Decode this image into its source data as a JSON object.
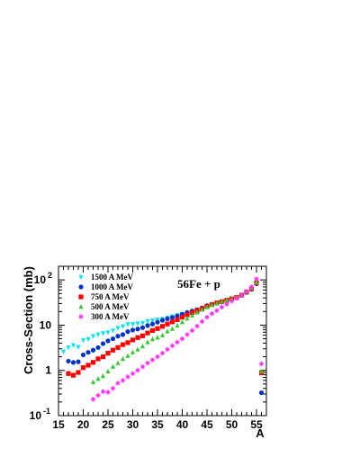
{
  "chart_data": {
    "type": "scatter",
    "title": "",
    "xlabel": "A",
    "ylabel": "Cross-Section (mb)",
    "xlim": [
      15,
      57
    ],
    "ylim": [
      0.1,
      200
    ],
    "ylog": true,
    "x_ticks": [
      15,
      20,
      25,
      30,
      35,
      40,
      45,
      50,
      55
    ],
    "y_ticks": [
      {
        "value": 0.1,
        "label": "10",
        "exp": "-1"
      },
      {
        "value": 1,
        "label": "1",
        "exp": ""
      },
      {
        "value": 10,
        "label": "10",
        "exp": ""
      },
      {
        "value": 100,
        "label": "10",
        "exp": "2"
      }
    ],
    "annotation": "56Fe + p",
    "legend_position": "top-left",
    "series": [
      {
        "name": "1500 A MeV",
        "color": "#00e5ee",
        "marker": "triangle-down",
        "points": [
          [
            16,
            2.6
          ],
          [
            17,
            3.2
          ],
          [
            18,
            3.6
          ],
          [
            19,
            3.3
          ],
          [
            20,
            4.6
          ],
          [
            21,
            4.9
          ],
          [
            22,
            5.7
          ],
          [
            23,
            6.2
          ],
          [
            24,
            6.6
          ],
          [
            25,
            6.9
          ],
          [
            26,
            7.6
          ],
          [
            27,
            8.6
          ],
          [
            28,
            9.4
          ],
          [
            29,
            10.4
          ],
          [
            30,
            10.5
          ],
          [
            31,
            10.9
          ],
          [
            32,
            11.2
          ],
          [
            33,
            12.2
          ],
          [
            34,
            12.6
          ],
          [
            35,
            13.2
          ],
          [
            36,
            13.7
          ],
          [
            37,
            14.6
          ],
          [
            38,
            15.5
          ],
          [
            39,
            16.5
          ],
          [
            40,
            17.5
          ],
          [
            41,
            19
          ],
          [
            42,
            20.5
          ],
          [
            43,
            22
          ],
          [
            44,
            24
          ],
          [
            45,
            26
          ],
          [
            46,
            28
          ],
          [
            47,
            30
          ],
          [
            48,
            32
          ],
          [
            49,
            34.5
          ],
          [
            50,
            37
          ],
          [
            51,
            40
          ],
          [
            52,
            45
          ],
          [
            53,
            52
          ],
          [
            54,
            62
          ],
          [
            55,
            85
          ]
        ]
      },
      {
        "name": "1000 A MeV",
        "color": "#0033cc",
        "marker": "circle",
        "points": [
          [
            17,
            1.6
          ],
          [
            18,
            1.5
          ],
          [
            19,
            1.55
          ],
          [
            20,
            2.2
          ],
          [
            21,
            2.5
          ],
          [
            22,
            2.8
          ],
          [
            23,
            3.2
          ],
          [
            24,
            3.9
          ],
          [
            25,
            4.5
          ],
          [
            26,
            5.0
          ],
          [
            27,
            5.7
          ],
          [
            28,
            6.2
          ],
          [
            29,
            7.2
          ],
          [
            30,
            7.8
          ],
          [
            31,
            8.2
          ],
          [
            32,
            8.8
          ],
          [
            33,
            9.8
          ],
          [
            34,
            10.6
          ],
          [
            35,
            11.6
          ],
          [
            36,
            12.8
          ],
          [
            37,
            13.8
          ],
          [
            38,
            14.8
          ],
          [
            39,
            16
          ],
          [
            40,
            17.5
          ],
          [
            41,
            19
          ],
          [
            42,
            20.5
          ],
          [
            43,
            22
          ],
          [
            44,
            24
          ],
          [
            45,
            27
          ],
          [
            46,
            29
          ],
          [
            47,
            31
          ],
          [
            48,
            33
          ],
          [
            49,
            35
          ],
          [
            50,
            38
          ],
          [
            51,
            41
          ],
          [
            52,
            46
          ],
          [
            53,
            53
          ],
          [
            54,
            62
          ],
          [
            55,
            82
          ],
          [
            56,
            0.32
          ]
        ]
      },
      {
        "name": "750 A MeV",
        "color": "#ff0000",
        "marker": "square",
        "points": [
          [
            17,
            0.85
          ],
          [
            18,
            0.78
          ],
          [
            19,
            0.9
          ],
          [
            20,
            1.15
          ],
          [
            21,
            1.3
          ],
          [
            22,
            1.5
          ],
          [
            23,
            1.8
          ],
          [
            24,
            2.0
          ],
          [
            25,
            2.4
          ],
          [
            26,
            2.8
          ],
          [
            27,
            3.2
          ],
          [
            28,
            3.7
          ],
          [
            29,
            4.1
          ],
          [
            30,
            4.7
          ],
          [
            31,
            5.3
          ],
          [
            32,
            5.8
          ],
          [
            33,
            6.7
          ],
          [
            34,
            7.6
          ],
          [
            35,
            8.4
          ],
          [
            36,
            9.4
          ],
          [
            37,
            10.6
          ],
          [
            38,
            11.8
          ],
          [
            39,
            13.2
          ],
          [
            40,
            15
          ],
          [
            41,
            17
          ],
          [
            42,
            19
          ],
          [
            43,
            21
          ],
          [
            44,
            23
          ],
          [
            45,
            26
          ],
          [
            46,
            28.5
          ],
          [
            47,
            31
          ],
          [
            48,
            33
          ],
          [
            49,
            35.5
          ],
          [
            50,
            38
          ],
          [
            51,
            41
          ],
          [
            52,
            46
          ],
          [
            53,
            54
          ],
          [
            54,
            64
          ],
          [
            55,
            86
          ],
          [
            56,
            0.88
          ]
        ]
      },
      {
        "name": "500 A MeV",
        "color": "#33cc33",
        "marker": "triangle-up",
        "points": [
          [
            22,
            0.55
          ],
          [
            23,
            0.65
          ],
          [
            24,
            0.75
          ],
          [
            25,
            0.95
          ],
          [
            26,
            1.2
          ],
          [
            27,
            1.45
          ],
          [
            28,
            1.8
          ],
          [
            29,
            2.1
          ],
          [
            30,
            2.5
          ],
          [
            31,
            2.9
          ],
          [
            32,
            3.4
          ],
          [
            33,
            4.2
          ],
          [
            34,
            4.9
          ],
          [
            35,
            5.3
          ],
          [
            36,
            6.0
          ],
          [
            37,
            7.3
          ],
          [
            38,
            8.3
          ],
          [
            39,
            9.8
          ],
          [
            40,
            11.6
          ],
          [
            41,
            14
          ],
          [
            42,
            16.5
          ],
          [
            43,
            19
          ],
          [
            44,
            22
          ],
          [
            45,
            25
          ],
          [
            46,
            28
          ],
          [
            47,
            30.5
          ],
          [
            48,
            33
          ],
          [
            49,
            35.5
          ],
          [
            50,
            38
          ],
          [
            51,
            42
          ],
          [
            52,
            47
          ],
          [
            53,
            55
          ],
          [
            54,
            66
          ],
          [
            55,
            88
          ],
          [
            56,
            0.95
          ]
        ]
      },
      {
        "name": "300 A MeV",
        "color": "#ff33ff",
        "marker": "star",
        "points": [
          [
            22,
            0.23
          ],
          [
            23,
            0.28
          ],
          [
            24,
            0.34
          ],
          [
            25,
            0.33
          ],
          [
            26,
            0.4
          ],
          [
            27,
            0.52
          ],
          [
            28,
            0.6
          ],
          [
            29,
            0.72
          ],
          [
            30,
            0.85
          ],
          [
            31,
            1.0
          ],
          [
            32,
            1.2
          ],
          [
            33,
            1.45
          ],
          [
            34,
            1.7
          ],
          [
            35,
            2.0
          ],
          [
            36,
            2.4
          ],
          [
            37,
            2.9
          ],
          [
            38,
            3.5
          ],
          [
            39,
            4.2
          ],
          [
            40,
            5.0
          ],
          [
            41,
            6.2
          ],
          [
            42,
            7.6
          ],
          [
            43,
            9.5
          ],
          [
            44,
            12
          ],
          [
            45,
            15
          ],
          [
            46,
            18
          ],
          [
            47,
            21
          ],
          [
            48,
            25
          ],
          [
            49,
            29
          ],
          [
            50,
            34
          ],
          [
            51,
            39
          ],
          [
            52,
            46
          ],
          [
            53,
            56
          ],
          [
            54,
            70
          ],
          [
            55,
            105
          ],
          [
            56,
            1.4
          ]
        ]
      }
    ]
  }
}
